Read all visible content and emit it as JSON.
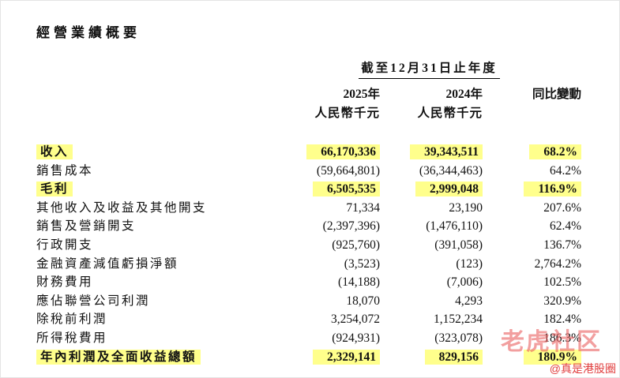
{
  "page": {
    "title": "經營業績概要"
  },
  "colors": {
    "highlight": "#ffff8c",
    "watermark_brand": "#e95f5f",
    "watermark_handle": "#e03c3c"
  },
  "table": {
    "period_header": "截至12月31日止年度",
    "columns": [
      {
        "year": "2025年",
        "unit": "人民幣千元"
      },
      {
        "year": "2024年",
        "unit": "人民幣千元"
      }
    ],
    "change_header": "同比變動",
    "rows": [
      {
        "label": "收入",
        "v2025": "66,170,336",
        "v2024": "39,343,511",
        "change": "68.2%",
        "highlight": true,
        "bold": true
      },
      {
        "label": "銷售成本",
        "v2025": "(59,664,801)",
        "v2024": "(36,344,463)",
        "change": "64.2%",
        "highlight": false,
        "bold": false
      },
      {
        "label": "毛利",
        "v2025": "6,505,535",
        "v2024": "2,999,048",
        "change": "116.9%",
        "highlight": true,
        "bold": true
      },
      {
        "label": "其他收入及收益及其他開支",
        "v2025": "71,334",
        "v2024": "23,190",
        "change": "207.6%",
        "highlight": false,
        "bold": false
      },
      {
        "label": "銷售及營銷開支",
        "v2025": "(2,397,396)",
        "v2024": "(1,476,110)",
        "change": "62.4%",
        "highlight": false,
        "bold": false
      },
      {
        "label": "行政開支",
        "v2025": "(925,760)",
        "v2024": "(391,058)",
        "change": "136.7%",
        "highlight": false,
        "bold": false
      },
      {
        "label": "金融資產減值虧損淨額",
        "v2025": "(3,523)",
        "v2024": "(123)",
        "change": "2,764.2%",
        "highlight": false,
        "bold": false
      },
      {
        "label": "財務費用",
        "v2025": "(14,188)",
        "v2024": "(7,006)",
        "change": "102.5%",
        "highlight": false,
        "bold": false
      },
      {
        "label": "應佔聯營公司利潤",
        "v2025": "18,070",
        "v2024": "4,293",
        "change": "320.9%",
        "highlight": false,
        "bold": false
      },
      {
        "label": "除稅前利潤",
        "v2025": "3,254,072",
        "v2024": "1,152,234",
        "change": "182.4%",
        "highlight": false,
        "bold": false
      },
      {
        "label": "所得稅費用",
        "v2025": "(924,931)",
        "v2024": "(323,078)",
        "change": "186.3%",
        "highlight": false,
        "bold": false
      },
      {
        "label": "年內利潤及全面收益總額",
        "v2025": "2,329,141",
        "v2024": "829,156",
        "change": "180.9%",
        "highlight": true,
        "bold": true
      }
    ]
  },
  "watermark": {
    "brand": "老虎社区",
    "handle": "@真是港股圈"
  }
}
